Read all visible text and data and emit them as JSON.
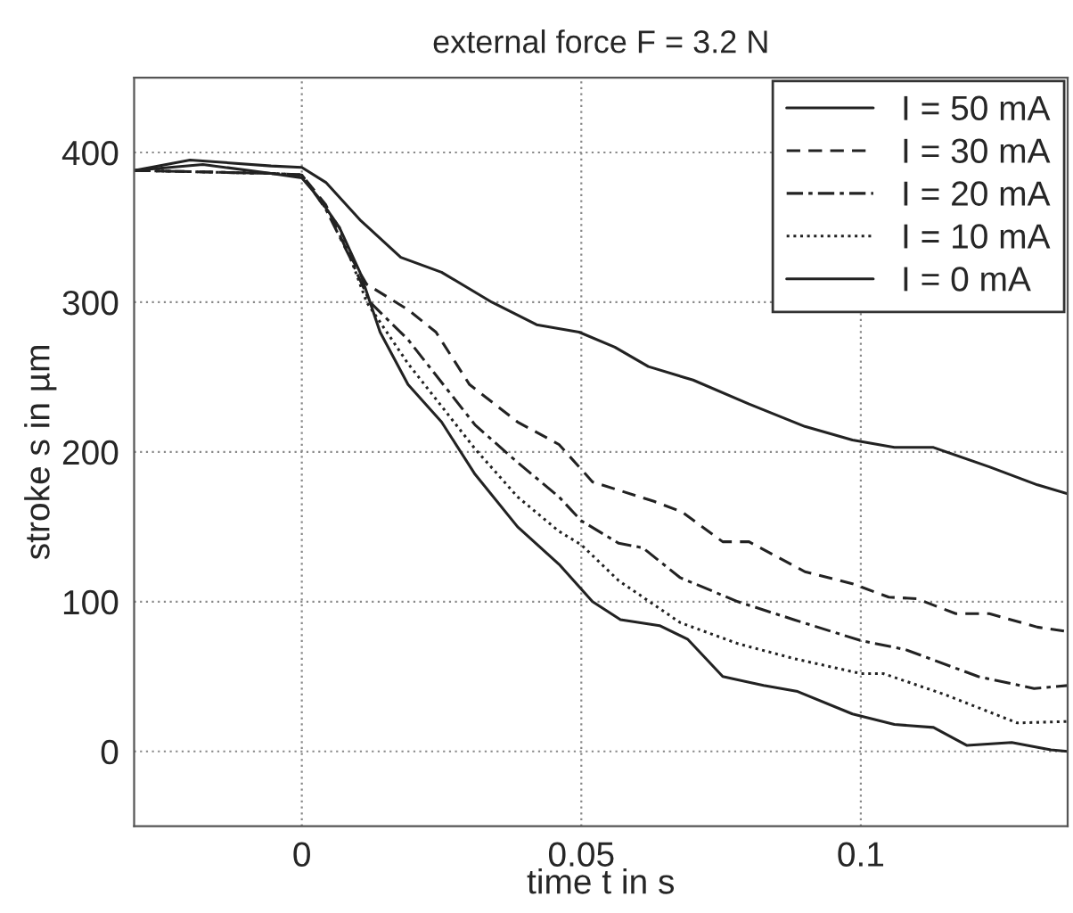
{
  "chart_data": {
    "type": "line",
    "title": "external force F = 3.2 N",
    "xlabel": "time t in s",
    "ylabel": "stroke s in µm",
    "xlim": [
      -0.03,
      0.137
    ],
    "xticks": [
      0,
      0.05,
      0.1
    ],
    "ylim": [
      -50,
      450
    ],
    "yticks": [
      0,
      100,
      200,
      300,
      400
    ],
    "grid": true,
    "legend": "top right",
    "marker": "none",
    "series": [
      {
        "name": "I = 50 mA",
        "color": "#222222",
        "line_style": "solid",
        "x": [
          -0.03,
          -0.02,
          -0.0055,
          0,
          0.0043,
          0.0104,
          0.0177,
          0.025,
          0.034,
          0.042,
          0.0496,
          0.056,
          0.062,
          0.07,
          0.08,
          0.09,
          0.0985,
          0.106,
          0.113,
          0.123,
          0.1316,
          0.137
        ],
        "values": [
          388,
          395,
          391,
          390,
          380,
          355,
          330,
          320,
          300,
          285,
          280,
          270,
          257,
          248,
          232,
          217,
          208,
          203,
          203,
          190,
          178,
          172
        ]
      },
      {
        "name": "I = 30 mA",
        "color": "#222222",
        "line_style": "dashed",
        "x": [
          -0.03,
          -0.0055,
          0,
          0.0043,
          0.008,
          0.0116,
          0.019,
          0.024,
          0.03,
          0.0386,
          0.046,
          0.052,
          0.063,
          0.068,
          0.0753,
          0.08,
          0.09,
          0.0985,
          0.105,
          0.11,
          0.117,
          0.123,
          0.1316,
          0.137
        ],
        "values": [
          388,
          386,
          385,
          365,
          335,
          312,
          295,
          280,
          245,
          220,
          205,
          180,
          167,
          160,
          140,
          140,
          120,
          112,
          103,
          102,
          92,
          92,
          83,
          80
        ]
      },
      {
        "name": "I = 20 mA",
        "color": "#222222",
        "line_style": "dashdot",
        "x": [
          -0.03,
          -0.0055,
          0,
          0.0043,
          0.0086,
          0.0122,
          0.019,
          0.031,
          0.0386,
          0.046,
          0.05,
          0.0567,
          0.061,
          0.0677,
          0.078,
          0.088,
          0.1,
          0.108,
          0.121,
          0.131,
          0.137
        ],
        "values": [
          388,
          386,
          385,
          362,
          330,
          300,
          275,
          218,
          193,
          170,
          154,
          139,
          136,
          116,
          100,
          88,
          74,
          68,
          50,
          42,
          44
        ]
      },
      {
        "name": "I = 10 mA",
        "color": "#222222",
        "line_style": "dotted",
        "x": [
          -0.03,
          -0.0055,
          0,
          0.0067,
          0.0116,
          0.019,
          0.031,
          0.0386,
          0.046,
          0.05,
          0.0567,
          0.0677,
          0.078,
          0.088,
          0.1,
          0.104,
          0.115,
          0.128,
          0.137
        ],
        "values": [
          388,
          386,
          385,
          350,
          300,
          259,
          202,
          170,
          147,
          138,
          114,
          86,
          72,
          62,
          52,
          52,
          38,
          19,
          20
        ]
      },
      {
        "name": "I = 0 mA",
        "color": "#222222",
        "line_style": "solid",
        "x": [
          -0.03,
          -0.0177,
          -0.0055,
          0,
          0.003,
          0.0067,
          0.0104,
          0.014,
          0.019,
          0.025,
          0.031,
          0.0386,
          0.046,
          0.052,
          0.057,
          0.064,
          0.069,
          0.0753,
          0.0826,
          0.0887,
          0.0985,
          0.106,
          0.113,
          0.119,
          0.127,
          0.134,
          0.137
        ],
        "values": [
          388,
          392,
          386,
          383,
          370,
          350,
          320,
          280,
          245,
          220,
          185,
          150,
          125,
          100,
          88,
          84,
          75,
          50,
          44,
          40,
          25,
          18,
          16,
          4,
          6,
          1,
          0
        ]
      }
    ]
  }
}
